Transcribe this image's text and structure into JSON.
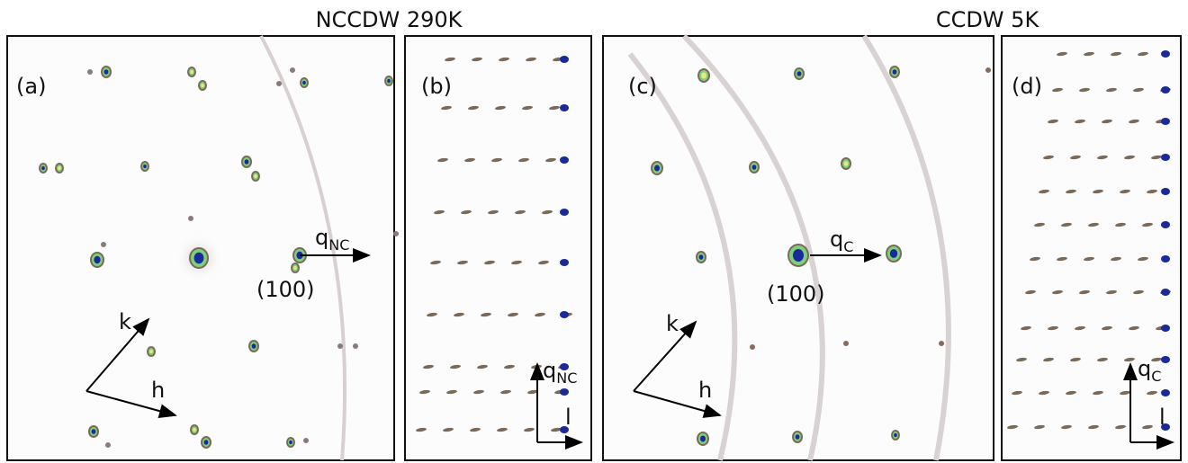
{
  "titles": [
    "NCCDW 290K",
    "CCDW 5K"
  ],
  "panels": [
    {
      "label": "(a)",
      "vector": {
        "base": "q",
        "sub": "NC"
      },
      "peak": "(100)",
      "axes": [
        "k",
        "h"
      ]
    },
    {
      "label": "(b)",
      "vector": {
        "base": "q",
        "sub": "NC"
      },
      "axis": "l"
    },
    {
      "label": "(c)",
      "vector": {
        "base": "q",
        "sub": "C"
      },
      "peak": "(100)",
      "axes": [
        "k",
        "h"
      ]
    },
    {
      "label": "(d)",
      "vector": {
        "base": "q",
        "sub": "C"
      },
      "axis": "l"
    }
  ]
}
